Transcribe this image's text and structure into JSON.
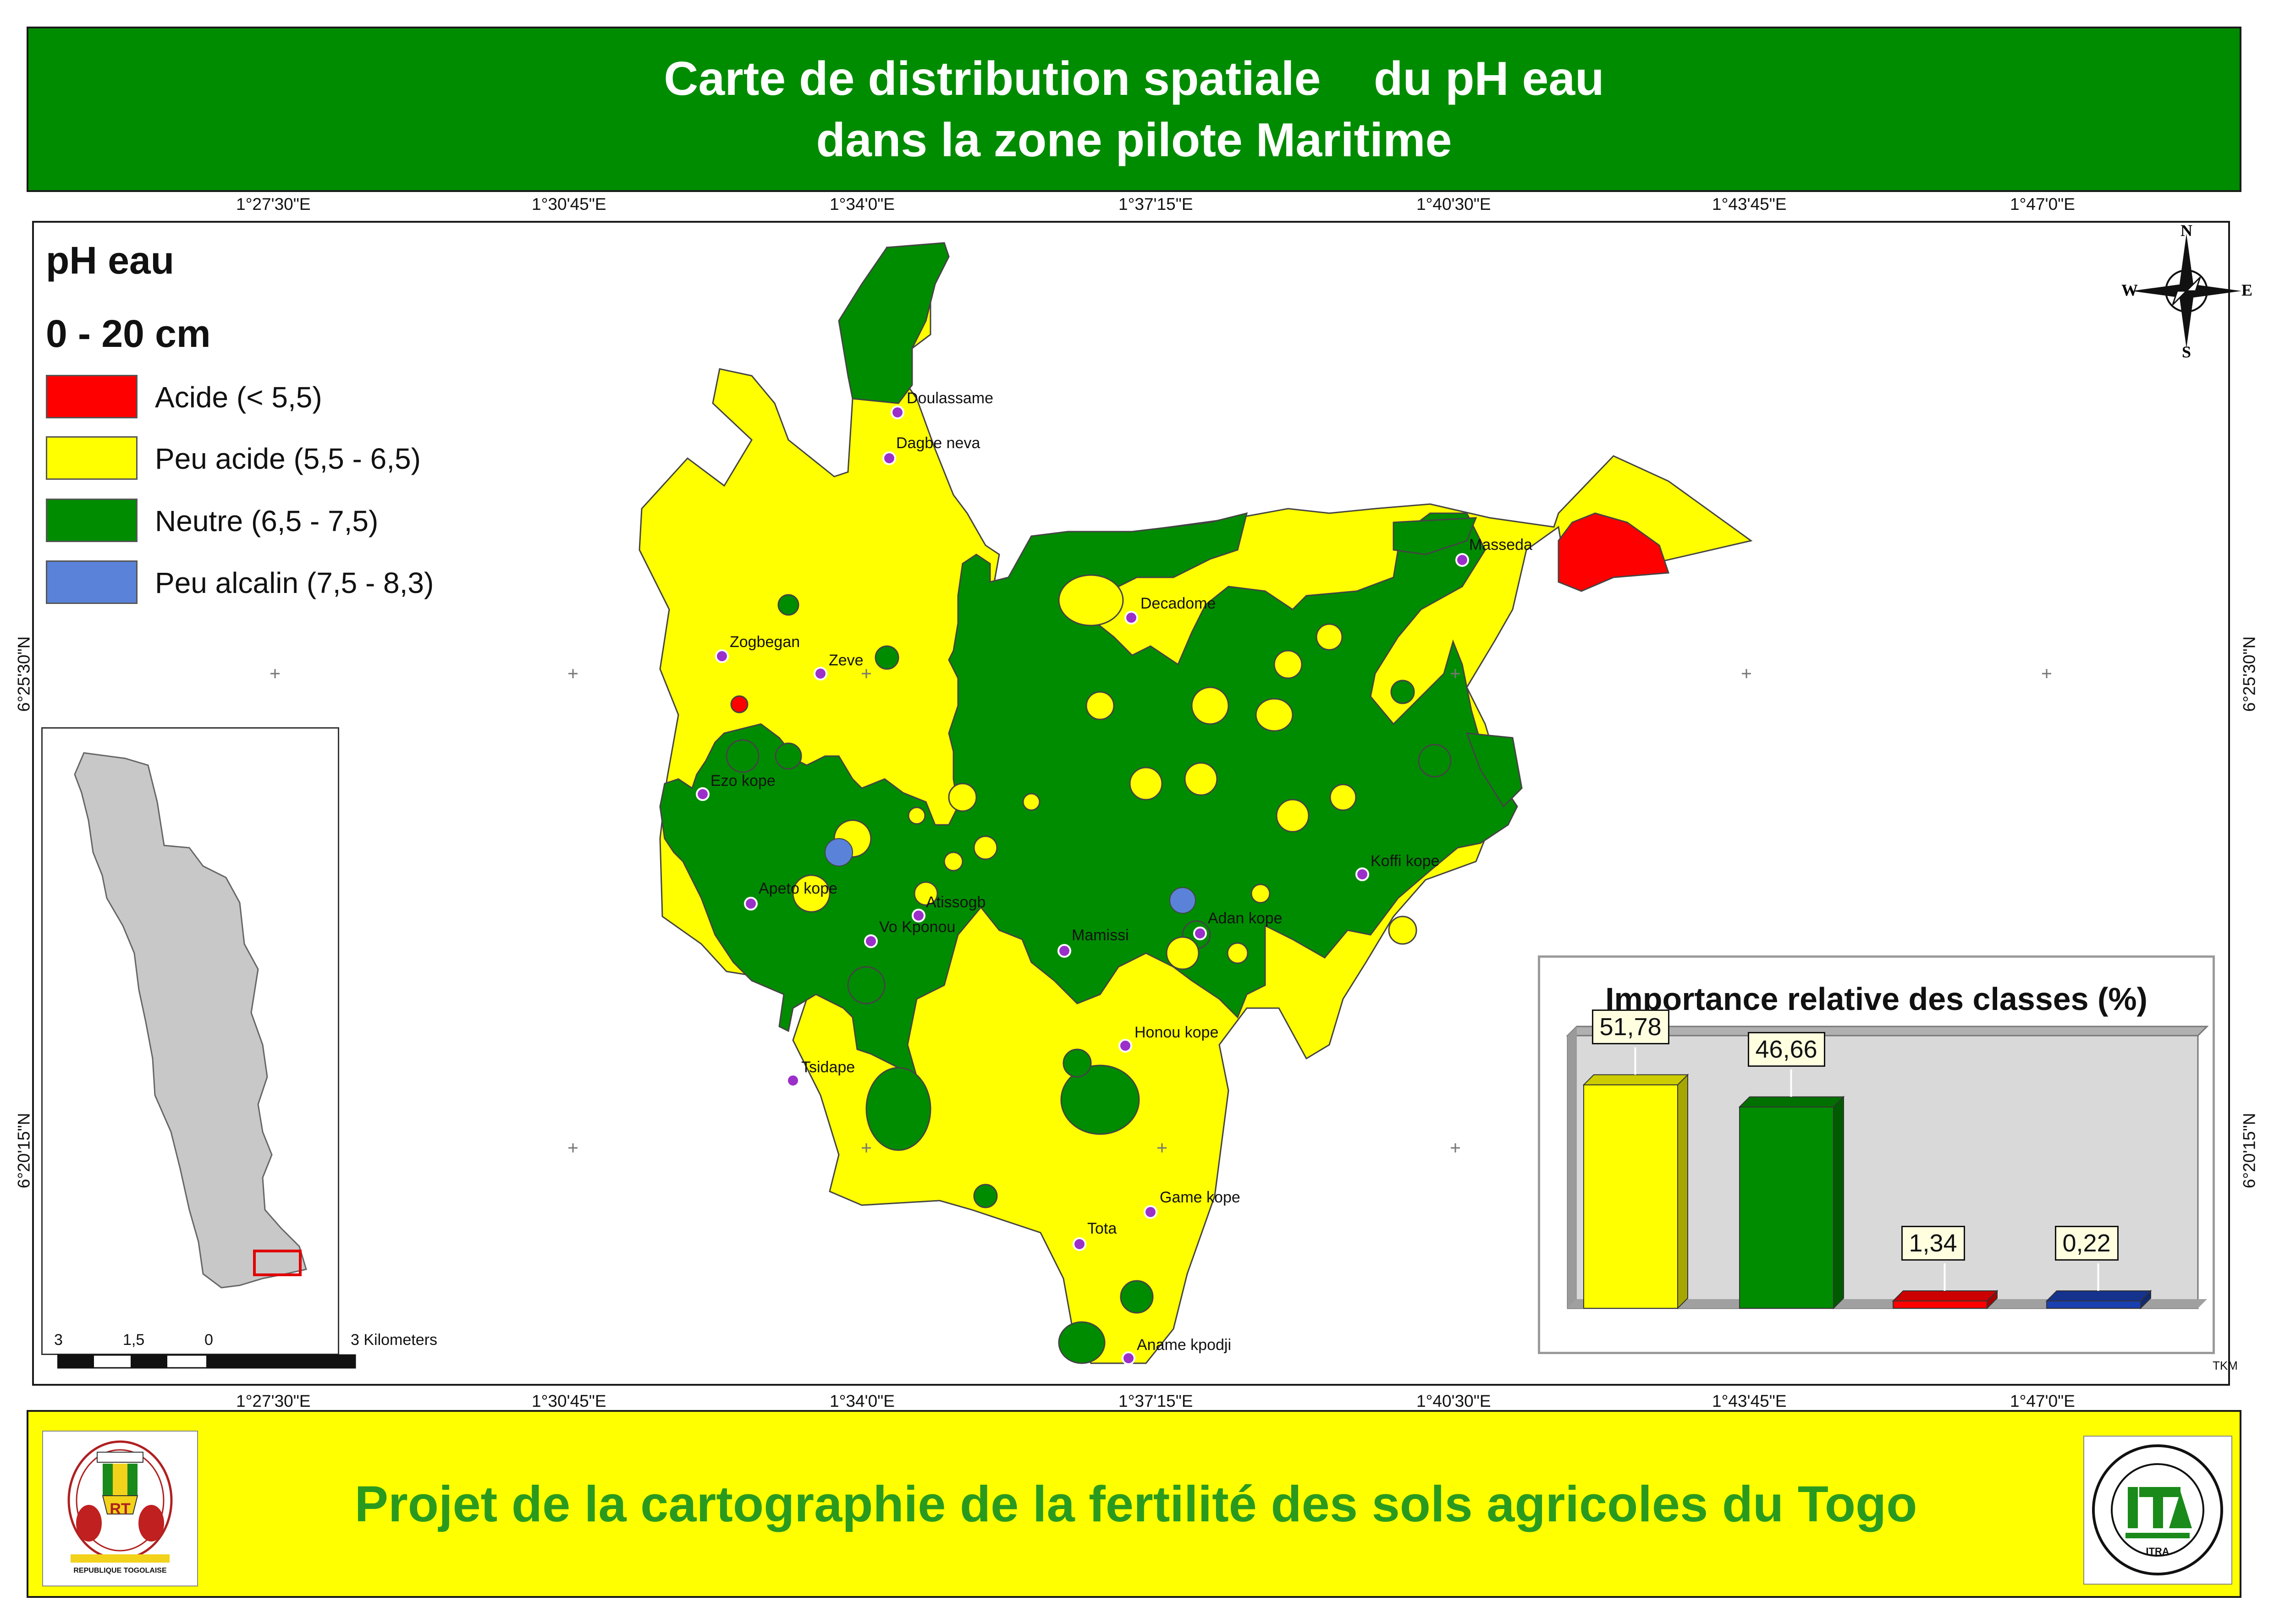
{
  "title": {
    "line1": "Carte de distribution spatiale    du pH eau",
    "line2": "dans la zone pilote Maritime"
  },
  "coords": {
    "top": [
      "1°27'30\"E",
      "1°30'45\"E",
      "1°34'0\"E",
      "1°37'15\"E",
      "1°40'30\"E",
      "1°43'45\"E",
      "1°47'0\"E"
    ],
    "bottom": [
      "1°27'30\"E",
      "1°30'45\"E",
      "1°34'0\"E",
      "1°37'15\"E",
      "1°40'30\"E",
      "1°43'45\"E",
      "1°47'0\"E"
    ],
    "left": [
      "6°25'30\"N",
      "6°20'15\"N"
    ],
    "right": [
      "6°25'30\"N",
      "6°20'15\"N"
    ]
  },
  "legend": {
    "title": "pH eau",
    "depth": "0 - 20 cm",
    "classes": [
      {
        "label": "Acide (< 5,5)",
        "color": "#ff0000"
      },
      {
        "label": "Peu acide (5,5 - 6,5)",
        "color": "#ffff00"
      },
      {
        "label": "Neutre (6,5 - 7,5)",
        "color": "#008c00"
      },
      {
        "label": "Peu alcalin (7,5 - 8,3)",
        "color": "#5a82d8"
      }
    ]
  },
  "compass": {
    "n": "N",
    "s": "S",
    "e": "E",
    "w": "W"
  },
  "places": [
    "Doulassame",
    "Dagbe neva",
    "Masseda",
    "Decadome",
    "Zogbegan",
    "Zeve",
    "Ezo kope",
    "Koffi kope",
    "Apeto kope",
    "Atissogb",
    "Adan kope",
    "Vo Kponou",
    "Mamissi",
    "Honou kope",
    "Tsidape",
    "Game kope",
    "Tota",
    "Aname kpodji"
  ],
  "scalebar": {
    "labels": [
      "3",
      "1,5",
      "0",
      "3 Kilometers"
    ]
  },
  "chart_data": {
    "type": "bar",
    "title": "Importance relative des classes (%)",
    "categories": [
      "Peu acide (5,5 - 6,5)",
      "Neutre (6,5 - 7,5)",
      "Acide (< 5,5)",
      "Peu alcalin (7,5 - 8,3)"
    ],
    "values": [
      51.78,
      46.66,
      1.34,
      0.22
    ],
    "value_labels": [
      "51,78",
      "46,66",
      "1,34",
      "0,22"
    ],
    "colors": [
      "#ffff00",
      "#008c00",
      "#ff0000",
      "#1a3fb0"
    ],
    "ylim": [
      0,
      60
    ]
  },
  "credit": "TKM",
  "footer": "Projet de la cartographie de la fertilité des sols agricoles du Togo",
  "logos": {
    "left_caption": "REPUBLIQUE TOGOLAISE",
    "left_monogram": "RT",
    "right_monogram": "ITRA"
  }
}
